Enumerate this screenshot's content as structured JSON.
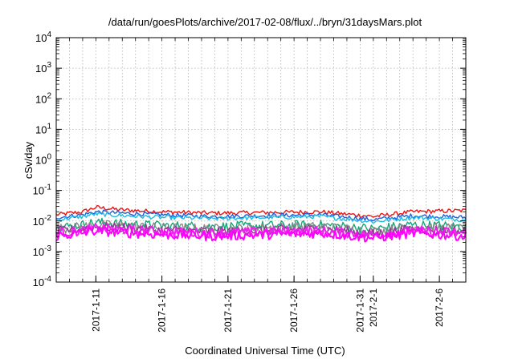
{
  "chart_data": {
    "type": "line",
    "title": "/data/run/goesPlots/archive/2017-02-08/flux/../bryn/31daysMars.plot",
    "xlabel": "Coordinated Universal Time (UTC)",
    "ylabel": "cSv/day",
    "yscale": "log",
    "ylim": [
      0.0001,
      10000
    ],
    "y_ticks": [
      {
        "base": "10",
        "exp": "-4"
      },
      {
        "base": "10",
        "exp": "-3"
      },
      {
        "base": "10",
        "exp": "-2"
      },
      {
        "base": "10",
        "exp": "-1"
      },
      {
        "base": "10",
        "exp": "0"
      },
      {
        "base": "10",
        "exp": "1"
      },
      {
        "base": "10",
        "exp": "2"
      },
      {
        "base": "10",
        "exp": "3"
      },
      {
        "base": "10",
        "exp": "4"
      }
    ],
    "xlim": [
      "2017-01-08",
      "2017-02-08"
    ],
    "x_ticks": [
      {
        "date": "2017-01-11",
        "label": "2017-1-11"
      },
      {
        "date": "2017-01-16",
        "label": "2017-1-16"
      },
      {
        "date": "2017-01-21",
        "label": "2017-1-21"
      },
      {
        "date": "2017-01-26",
        "label": "2017-1-26"
      },
      {
        "date": "2017-01-31",
        "label": "2017-1-31"
      },
      {
        "date": "2017-02-01",
        "label": "2017-2-1"
      },
      {
        "date": "2017-02-06",
        "label": "2017-2-6"
      }
    ],
    "grid": true,
    "legend": "none",
    "series": [
      {
        "color": "#ee1111",
        "x": [
          "2017-01-08",
          "2017-01-10",
          "2017-01-11",
          "2017-01-13",
          "2017-01-16",
          "2017-01-20",
          "2017-01-24",
          "2017-01-28",
          "2017-02-01",
          "2017-02-04",
          "2017-02-08"
        ],
        "values": [
          0.016,
          0.02,
          0.028,
          0.023,
          0.02,
          0.018,
          0.019,
          0.02,
          0.014,
          0.02,
          0.022
        ]
      },
      {
        "color": "#1a5fe0",
        "x": [
          "2017-01-08",
          "2017-01-10",
          "2017-01-11",
          "2017-01-13",
          "2017-01-16",
          "2017-01-20",
          "2017-01-24",
          "2017-01-28",
          "2017-02-01",
          "2017-02-04",
          "2017-02-08"
        ],
        "values": [
          0.013,
          0.016,
          0.02,
          0.018,
          0.016,
          0.014,
          0.015,
          0.016,
          0.011,
          0.015,
          0.013
        ]
      },
      {
        "color": "#22bbdd",
        "x": [
          "2017-01-08",
          "2017-01-10",
          "2017-01-11",
          "2017-01-13",
          "2017-01-16",
          "2017-01-20",
          "2017-01-24",
          "2017-01-28",
          "2017-02-01",
          "2017-02-04",
          "2017-02-08"
        ],
        "values": [
          0.011,
          0.014,
          0.017,
          0.015,
          0.013,
          0.012,
          0.013,
          0.014,
          0.0095,
          0.013,
          0.011
        ]
      },
      {
        "color": "#11a877",
        "x": [
          "2017-01-08",
          "2017-01-10",
          "2017-01-11",
          "2017-01-13",
          "2017-01-16",
          "2017-01-20",
          "2017-01-24",
          "2017-01-28",
          "2017-02-01",
          "2017-02-04",
          "2017-02-08"
        ],
        "values": [
          0.006,
          0.0075,
          0.009,
          0.008,
          0.007,
          0.0065,
          0.007,
          0.0075,
          0.0055,
          0.0075,
          0.0065
        ]
      },
      {
        "color": "#888888",
        "x": [
          "2017-01-08",
          "2017-01-10",
          "2017-01-11",
          "2017-01-13",
          "2017-01-16",
          "2017-01-20",
          "2017-01-24",
          "2017-01-28",
          "2017-02-01",
          "2017-02-04",
          "2017-02-08"
        ],
        "values": [
          0.0055,
          0.0065,
          0.0075,
          0.007,
          0.006,
          0.0055,
          0.006,
          0.0065,
          0.0045,
          0.0065,
          0.0055
        ]
      },
      {
        "color": "#993399",
        "x": [
          "2017-01-08",
          "2017-01-10",
          "2017-01-11",
          "2017-01-13",
          "2017-01-16",
          "2017-01-20",
          "2017-01-24",
          "2017-01-28",
          "2017-02-01",
          "2017-02-04",
          "2017-02-08"
        ],
        "values": [
          0.0045,
          0.0055,
          0.0065,
          0.006,
          0.005,
          0.0045,
          0.005,
          0.0055,
          0.0038,
          0.0055,
          0.0045
        ]
      },
      {
        "color": "#ee22ee",
        "x": [
          "2017-01-08",
          "2017-01-10",
          "2017-01-11",
          "2017-01-13",
          "2017-01-16",
          "2017-01-20",
          "2017-01-24",
          "2017-01-28",
          "2017-02-01",
          "2017-02-04",
          "2017-02-08"
        ],
        "values": [
          0.004,
          0.0048,
          0.0058,
          0.0052,
          0.0045,
          0.004,
          0.0045,
          0.0048,
          0.0034,
          0.0048,
          0.004
        ]
      },
      {
        "color": "#ff00ff",
        "x": [
          "2017-01-08",
          "2017-01-10",
          "2017-01-11",
          "2017-01-13",
          "2017-01-16",
          "2017-01-20",
          "2017-01-24",
          "2017-01-28",
          "2017-02-01",
          "2017-02-04",
          "2017-02-08"
        ],
        "values": [
          0.0032,
          0.004,
          0.0048,
          0.0042,
          0.0036,
          0.0032,
          0.0036,
          0.004,
          0.0028,
          0.004,
          0.0032
        ]
      }
    ]
  }
}
